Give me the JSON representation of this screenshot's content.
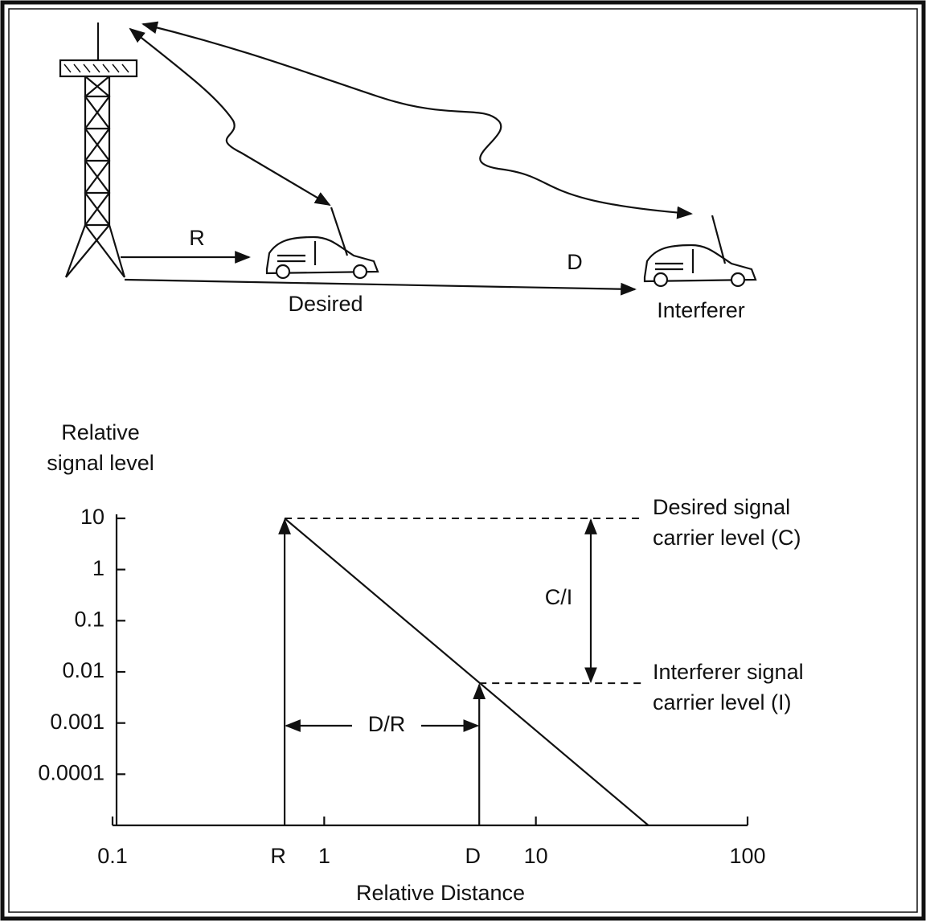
{
  "diagram": {
    "labels": {
      "r": "R",
      "d": "D",
      "desired": "Desired",
      "interferer": "Interferer"
    }
  },
  "chart_data": {
    "type": "line",
    "ylabel": [
      "Relative",
      "signal level"
    ],
    "xlabel": "Relative Distance",
    "log_x": true,
    "log_y": true,
    "xlim": [
      0.1,
      100
    ],
    "ylim": [
      1e-05,
      10
    ],
    "xticks": [
      0.1,
      1,
      10,
      100
    ],
    "yticks": [
      10,
      1,
      0.1,
      0.01,
      0.001,
      0.0001
    ],
    "x_markers": [
      {
        "label": "R",
        "value": 0.65
      },
      {
        "label": "D",
        "value": 5.4
      }
    ],
    "series": [
      {
        "x": [
          0.65,
          34
        ],
        "values": [
          10,
          1e-05
        ],
        "color": "#111111"
      }
    ],
    "levels": [
      {
        "label": [
          "Desired signal",
          "carrier level (C)"
        ],
        "value": 10
      },
      {
        "label": [
          "Interferer signal",
          "carrier level (I)"
        ],
        "value": 0.006
      }
    ],
    "ratio_labels": {
      "c_over_i": "C/I",
      "d_over_r": "D/R"
    }
  }
}
